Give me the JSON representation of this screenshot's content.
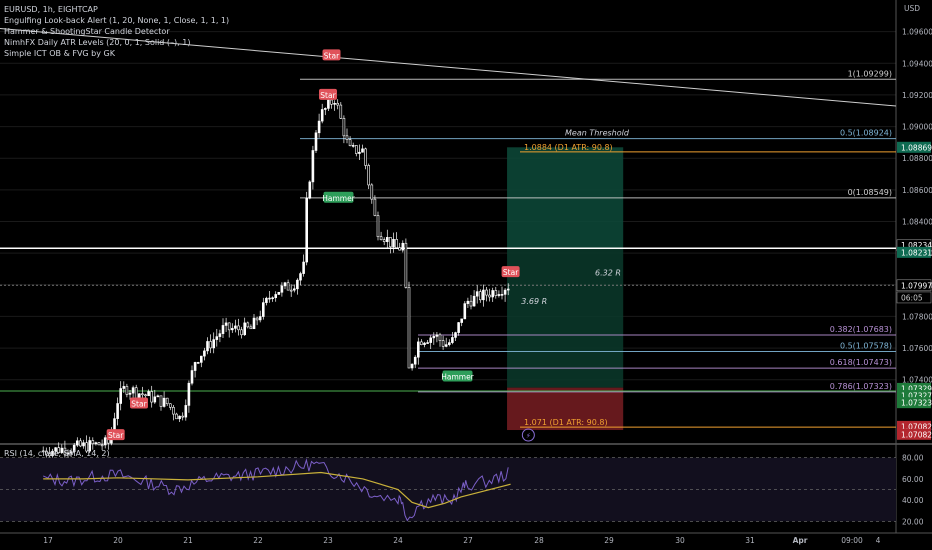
{
  "header": {
    "symbol": "EURUSD, 1h, EIGHTCAP",
    "indicators": [
      "Engulfing Look-back Alert (1, 20, None, 1, Close, 1, 1, 1)",
      "Hammer & ShootingStar Candle Detector",
      "NimhFX Daily ATR Levels (20, 0, 1, Solid (–), 1)",
      "Simple ICT OB & FVG by GK"
    ],
    "currency": "USD"
  },
  "colors": {
    "background": "#000000",
    "up": "#ffffff",
    "grid": "#1a1a1a",
    "fib_blue": "#7fb5d6",
    "fib_purple": "#b892d6",
    "fib_green": "#4caf50",
    "atr_orange": "#f0a030",
    "profit_zone": "#0d4a3a",
    "loss_zone": "#6b1a1f",
    "star_label": "#e0525a",
    "hammer_label": "#2e9e5a",
    "rsi_line": "#7b5fc7",
    "rsi_ma": "#c9b13a"
  },
  "chart_data": {
    "type": "candlestick",
    "title": "EURUSD, 1h, EIGHTCAP",
    "y_axis": {
      "unit": "USD",
      "range": [
        1.07,
        1.098
      ],
      "ticks": [
        "1.09600",
        "1.09400",
        "1.09200",
        "1.09000",
        "1.08800",
        "1.08600",
        "1.08400",
        "1.08200",
        "1.08000",
        "1.07800",
        "1.07600",
        "1.07400"
      ]
    },
    "x_axis": {
      "ticks": [
        "17",
        "20",
        "21",
        "22",
        "23",
        "24",
        "27",
        "28",
        "29",
        "30",
        "31",
        "Apr",
        "09:00",
        "4"
      ]
    },
    "price_path": [
      {
        "day": 16.9,
        "price": 1.0695
      },
      {
        "day": 19.6,
        "price": 1.07
      },
      {
        "day": 20.1,
        "price": 1.0735
      },
      {
        "day": 20.7,
        "price": 1.0725
      },
      {
        "day": 20.9,
        "price": 1.0715
      },
      {
        "day": 21.1,
        "price": 1.0752
      },
      {
        "day": 21.5,
        "price": 1.0772
      },
      {
        "day": 21.9,
        "price": 1.0772
      },
      {
        "day": 22.2,
        "price": 1.0795
      },
      {
        "day": 22.5,
        "price": 1.08
      },
      {
        "day": 22.65,
        "price": 1.081
      },
      {
        "day": 22.7,
        "price": 1.0855
      },
      {
        "day": 22.85,
        "price": 1.0905
      },
      {
        "day": 23.1,
        "price": 1.0918
      },
      {
        "day": 23.3,
        "price": 1.0885
      },
      {
        "day": 23.5,
        "price": 1.0885
      },
      {
        "day": 23.7,
        "price": 1.0835
      },
      {
        "day": 24.0,
        "price": 1.0822
      },
      {
        "day": 24.2,
        "price": 1.0826
      },
      {
        "day": 24.3,
        "price": 1.0812
      },
      {
        "day": 24.45,
        "price": 1.0745
      },
      {
        "day": 24.9,
        "price": 1.0765
      },
      {
        "day": 25.6,
        "price": 1.0768
      },
      {
        "day": 26.0,
        "price": 1.0762
      },
      {
        "day": 26.4,
        "price": 1.0765
      },
      {
        "day": 26.9,
        "price": 1.0788
      },
      {
        "day": 27.6,
        "price": 1.08
      }
    ],
    "horizontal_levels": [
      {
        "label": "1(1.09299)",
        "price": 1.09299,
        "color": "#cfcfcf"
      },
      {
        "label": "0.5(1.08924)",
        "price": 1.08924,
        "color": "#7fb5d6"
      },
      {
        "label": "0(1.08549)",
        "price": 1.08549,
        "color": "#cfcfcf"
      },
      {
        "label": "0.382(1.07683)",
        "price": 1.07683,
        "color": "#b892d6"
      },
      {
        "label": "0.5(1.07578)",
        "price": 1.07578,
        "color": "#7fb5d6"
      },
      {
        "label": "0.618(1.07473)",
        "price": 1.07473,
        "color": "#b892d6"
      },
      {
        "label": "0.786(1.07323)",
        "price": 1.07323,
        "color": "#b892d6"
      }
    ],
    "atr_levels": [
      {
        "label": "1.0884 (D1 ATR: 90.8)",
        "price": 1.0884
      },
      {
        "label": "1.071 (D1 ATR: 90.8)",
        "price": 1.071
      }
    ],
    "mean_threshold_label": "Mean Threshold",
    "key_lines": [
      {
        "price": 1.08231,
        "color": "#ffffff"
      },
      {
        "price": 1.07997,
        "color": "#777777"
      },
      {
        "price": 1.07329,
        "color": "#4caf50"
      }
    ],
    "position": {
      "entry": 1.08231,
      "target": 1.08869,
      "stop": 1.07082,
      "start_day": 27.55,
      "end_day": 29.2
    },
    "ratios": [
      {
        "label": "3.69 R",
        "day": 27.75,
        "price": 1.0788
      },
      {
        "label": "6.32 R",
        "day": 28.8,
        "price": 1.0806
      }
    ],
    "candle_labels": [
      {
        "text": "Star",
        "day": 23.05,
        "price": 1.0945,
        "kind": "star"
      },
      {
        "text": "Star",
        "day": 23.0,
        "price": 1.092,
        "kind": "star"
      },
      {
        "text": "Hammer",
        "day": 23.15,
        "price": 1.0855,
        "kind": "hammer"
      },
      {
        "text": "Star",
        "day": 27.6,
        "price": 1.0808,
        "kind": "star"
      },
      {
        "text": "Hammer",
        "day": 26.55,
        "price": 1.0742,
        "kind": "hammer"
      },
      {
        "text": "Star",
        "day": 20.3,
        "price": 1.0725,
        "kind": "star"
      },
      {
        "text": "Star",
        "day": 19.9,
        "price": 1.0705,
        "kind": "star"
      }
    ],
    "price_tags": [
      {
        "text": "1.08869",
        "price": 1.08869,
        "bg": "#0f6b52",
        "fg": "#ffffff"
      },
      {
        "text": "1.08234",
        "price": 1.0825,
        "bg": "#000000",
        "fg": "#ffffff",
        "border": "#888888"
      },
      {
        "text": "1.08231",
        "price": 1.08205,
        "bg": "#0f6b52",
        "fg": "#ffffff"
      },
      {
        "text": "1.07997",
        "price": 1.07997,
        "bg": "#000000",
        "fg": "#ffffff",
        "border": "#888888"
      },
      {
        "text": "06:05",
        "price": 1.0792,
        "bg": "#000000",
        "fg": "#cccccc",
        "border": "#888888"
      },
      {
        "text": "1.07329",
        "price": 1.07345,
        "bg": "#1e7a3a",
        "fg": "#ffffff"
      },
      {
        "text": "1.07327",
        "price": 1.073,
        "bg": "#1e7a3a",
        "fg": "#ffffff"
      },
      {
        "text": "1.07323",
        "price": 1.07255,
        "bg": "#1e7a3a",
        "fg": "#ffffff"
      },
      {
        "text": "1.07082",
        "price": 1.07105,
        "bg": "#b3262e",
        "fg": "#ffffff"
      },
      {
        "text": "1.07082",
        "price": 1.07055,
        "bg": "#b3262e",
        "fg": "#ffffff"
      }
    ],
    "rsi": {
      "title": "RSI (14, close, SMA, 14, 2)",
      "ticks": [
        "80.00",
        "60.00",
        "40.00",
        "20.00"
      ],
      "range": [
        10,
        90
      ],
      "bands": [
        80,
        50,
        20
      ],
      "values": [
        {
          "day": 16.9,
          "v": 60
        },
        {
          "day": 18.0,
          "v": 58
        },
        {
          "day": 19.0,
          "v": 62
        },
        {
          "day": 20.0,
          "v": 64
        },
        {
          "day": 20.8,
          "v": 50
        },
        {
          "day": 21.3,
          "v": 60
        },
        {
          "day": 22.0,
          "v": 65
        },
        {
          "day": 22.8,
          "v": 74
        },
        {
          "day": 23.3,
          "v": 60
        },
        {
          "day": 23.7,
          "v": 44
        },
        {
          "day": 24.2,
          "v": 40
        },
        {
          "day": 24.4,
          "v": 22
        },
        {
          "day": 24.9,
          "v": 36
        },
        {
          "day": 25.6,
          "v": 42
        },
        {
          "day": 26.2,
          "v": 38
        },
        {
          "day": 26.8,
          "v": 52
        },
        {
          "day": 27.3,
          "v": 58
        },
        {
          "day": 27.6,
          "v": 66
        }
      ],
      "ma_values": [
        {
          "day": 16.9,
          "v": 60
        },
        {
          "day": 18.5,
          "v": 60
        },
        {
          "day": 20.0,
          "v": 61
        },
        {
          "day": 21.0,
          "v": 59
        },
        {
          "day": 22.0,
          "v": 62
        },
        {
          "day": 22.9,
          "v": 66
        },
        {
          "day": 23.5,
          "v": 60
        },
        {
          "day": 24.0,
          "v": 50
        },
        {
          "day": 24.6,
          "v": 38
        },
        {
          "day": 25.3,
          "v": 33
        },
        {
          "day": 26.0,
          "v": 37
        },
        {
          "day": 26.7,
          "v": 43
        },
        {
          "day": 27.6,
          "v": 55
        }
      ]
    }
  }
}
